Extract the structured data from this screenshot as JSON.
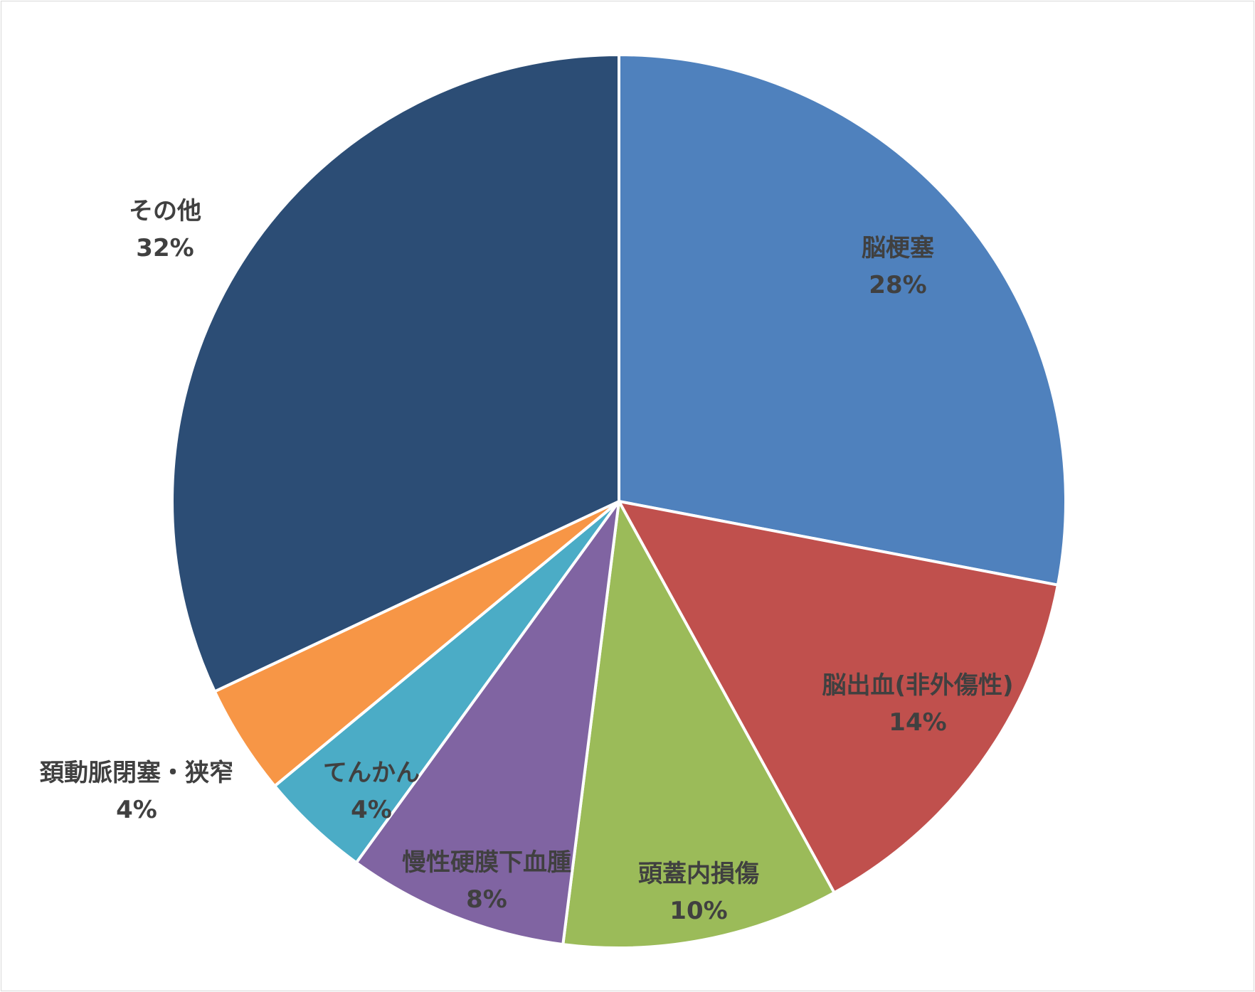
{
  "chart_data": {
    "type": "pie",
    "title": "",
    "start_angle_deg": 0,
    "direction": "clockwise",
    "slices": [
      {
        "label": "脳梗塞",
        "value": 28,
        "value_label": "28%",
        "color": "#4F81BD"
      },
      {
        "label": "脳出血(非外傷性)",
        "value": 14,
        "value_label": "14%",
        "color": "#C0504D"
      },
      {
        "label": "頭蓋内損傷",
        "value": 10,
        "value_label": "10%",
        "color": "#9BBB59"
      },
      {
        "label": "慢性硬膜下血腫",
        "value": 8,
        "value_label": "8%",
        "color": "#8064A2"
      },
      {
        "label": "てんかん",
        "value": 4,
        "value_label": "4%",
        "color": "#4BACC6"
      },
      {
        "label": "頚動脈閉塞・狭窄",
        "value": 4,
        "value_label": "4%",
        "color": "#F79646"
      },
      {
        "label": "その他",
        "value": 32,
        "value_label": "32%",
        "color": "#2C4D75"
      }
    ],
    "legend": "none",
    "label_color": "#404040",
    "slice_border_color": "#ffffff"
  }
}
